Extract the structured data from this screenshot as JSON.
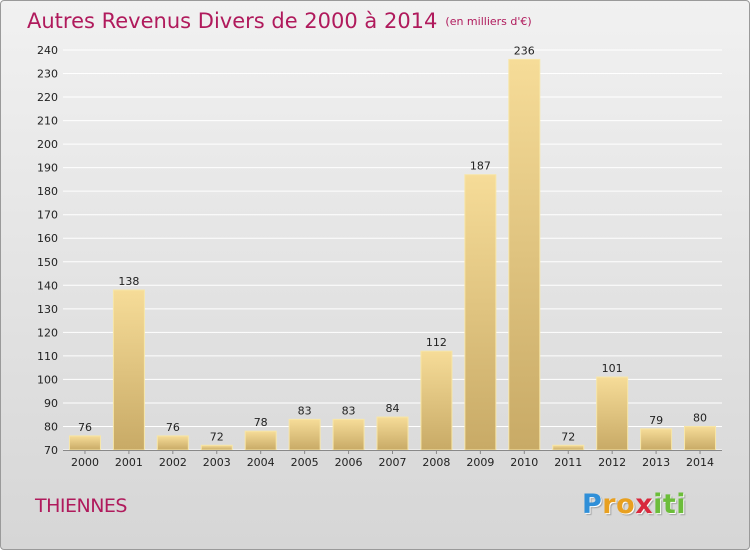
{
  "chart_data": {
    "type": "bar",
    "title": "Autres Revenus Divers de 2000 à 2014",
    "subtitle": "(en milliers d'€)",
    "categories": [
      "2000",
      "2001",
      "2002",
      "2003",
      "2004",
      "2005",
      "2006",
      "2007",
      "2008",
      "2009",
      "2010",
      "2011",
      "2012",
      "2013",
      "2014"
    ],
    "values": [
      76,
      138,
      76,
      72,
      78,
      83,
      83,
      84,
      112,
      187,
      236,
      72,
      101,
      79,
      80
    ],
    "yticks": [
      70,
      80,
      90,
      100,
      110,
      120,
      130,
      140,
      150,
      160,
      170,
      180,
      190,
      200,
      210,
      220,
      230,
      240
    ],
    "ylim": [
      70,
      240
    ],
    "grid": "horizontal",
    "legend": "none"
  },
  "footer": {
    "commune": "THIENNES",
    "logo": {
      "letters": [
        "P",
        "r",
        "o",
        "x",
        "i",
        "t",
        "i"
      ],
      "colors": [
        "#2f8fd8",
        "#e8a020",
        "#e8a020",
        "#d8283c",
        "#6cbd3a",
        "#6cbd3a",
        "#6cbd3a"
      ]
    }
  },
  "colors": {
    "title": "#b01a5c",
    "bar_light": "#f6dc98",
    "bar_dark": "#c8aa66",
    "grid": "#ffffff"
  }
}
